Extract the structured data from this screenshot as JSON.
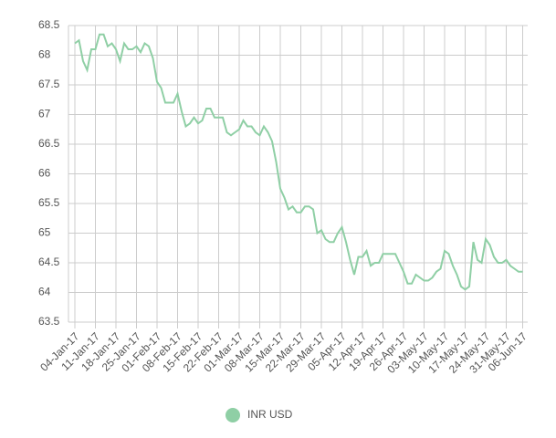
{
  "chart_data": {
    "type": "line",
    "categories": [
      "04-Jan-17",
      null,
      null,
      null,
      null,
      "11-Jan-17",
      null,
      null,
      null,
      null,
      "18-Jan-17",
      null,
      null,
      null,
      null,
      "25-Jan-17",
      null,
      null,
      null,
      null,
      "01-Feb-17",
      null,
      null,
      null,
      null,
      "08-Feb-17",
      null,
      null,
      null,
      null,
      "15-Feb-17",
      null,
      null,
      null,
      null,
      "22-Feb-17",
      null,
      null,
      null,
      null,
      "01-Mar-17",
      null,
      null,
      null,
      null,
      "08-Mar-17",
      null,
      null,
      null,
      null,
      "15-Mar-17",
      null,
      null,
      null,
      null,
      "22-Mar-17",
      null,
      null,
      null,
      null,
      "29-Mar-17",
      null,
      null,
      null,
      null,
      "05-Apr-17",
      null,
      null,
      null,
      null,
      "12-Apr-17",
      null,
      null,
      null,
      null,
      "19-Apr-17",
      null,
      null,
      null,
      null,
      "26-Apr-17",
      null,
      null,
      null,
      null,
      "03-May-17",
      null,
      null,
      null,
      null,
      "10-May-17",
      null,
      null,
      null,
      null,
      "17-May-17",
      null,
      null,
      null,
      null,
      "24-May-17",
      null,
      null,
      null,
      null,
      "31-May-17",
      null,
      null,
      null,
      "06-Jun-17"
    ],
    "series": [
      {
        "name": "INR USD",
        "color": "#8fcfa5",
        "values": [
          68.2,
          68.25,
          67.9,
          67.75,
          68.1,
          68.1,
          68.35,
          68.35,
          68.15,
          68.2,
          68.1,
          67.9,
          68.2,
          68.1,
          68.1,
          68.15,
          68.05,
          68.2,
          68.15,
          67.95,
          67.55,
          67.45,
          67.2,
          67.2,
          67.2,
          67.35,
          67.05,
          66.8,
          66.85,
          66.95,
          66.85,
          66.9,
          67.1,
          67.1,
          66.95,
          66.95,
          66.95,
          66.7,
          66.65,
          66.7,
          66.75,
          66.9,
          66.8,
          66.8,
          66.7,
          66.65,
          66.8,
          66.7,
          66.55,
          66.2,
          65.75,
          65.6,
          65.4,
          65.45,
          65.35,
          65.35,
          65.45,
          65.45,
          65.4,
          65.0,
          65.05,
          64.9,
          64.85,
          64.85,
          65.0,
          65.1,
          64.85,
          64.55,
          64.3,
          64.6,
          64.6,
          64.7,
          64.45,
          64.5,
          64.5,
          64.65,
          64.65,
          64.65,
          64.65,
          64.5,
          64.35,
          64.15,
          64.15,
          64.3,
          64.25,
          64.2,
          64.2,
          64.25,
          64.35,
          64.4,
          64.7,
          64.65,
          64.45,
          64.3,
          64.1,
          64.05,
          64.1,
          64.85,
          64.55,
          64.5,
          64.9,
          64.8,
          64.6,
          64.5,
          64.5,
          64.55,
          64.45,
          64.4,
          64.35,
          64.35
        ]
      }
    ],
    "ylim": [
      63.5,
      68.5
    ],
    "yticks": [
      63.5,
      64,
      64.5,
      65,
      65.5,
      66,
      66.5,
      67,
      67.5,
      68,
      68.5
    ],
    "grid": true,
    "legend": "bottom"
  }
}
